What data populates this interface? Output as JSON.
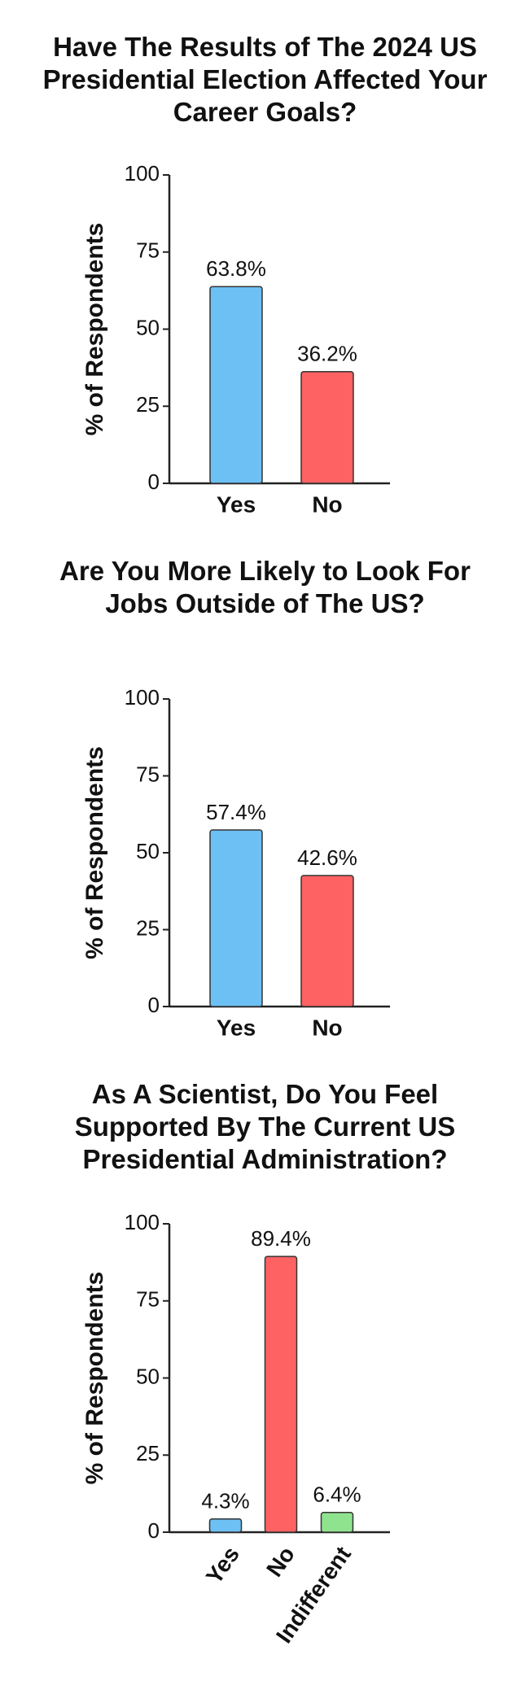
{
  "chart_data": [
    {
      "type": "bar",
      "title": "Have The Results of The 2024 US Presidential Election Affected Your Career Goals?",
      "y_label": "% of Respondents",
      "categories": [
        "Yes",
        "No"
      ],
      "values": [
        63.8,
        36.2
      ],
      "value_labels": [
        "63.8%",
        "36.2%"
      ],
      "colors": [
        "#6cc0f3",
        "#ff6262"
      ],
      "ylim": [
        0,
        100
      ],
      "yticks": [
        0,
        25,
        50,
        75,
        100
      ]
    },
    {
      "type": "bar",
      "title": "Are You More Likely to Look For Jobs Outside of The US?",
      "y_label": "% of Respondents",
      "categories": [
        "Yes",
        "No"
      ],
      "values": [
        57.4,
        42.6
      ],
      "value_labels": [
        "57.4%",
        "42.6%"
      ],
      "colors": [
        "#6cc0f3",
        "#ff6262"
      ],
      "ylim": [
        0,
        100
      ],
      "yticks": [
        0,
        25,
        50,
        75,
        100
      ]
    },
    {
      "type": "bar",
      "title": "As A Scientist, Do You Feel Supported By The Current US Presidential Administration?",
      "y_label": "% of Respondents",
      "categories": [
        "Yes",
        "No",
        "Indifferent"
      ],
      "values": [
        4.3,
        89.4,
        6.4
      ],
      "value_labels": [
        "4.3%",
        "89.4%",
        "6.4%"
      ],
      "colors": [
        "#6cc0f3",
        "#ff6262",
        "#90e38e"
      ],
      "ylim": [
        0,
        100
      ],
      "yticks": [
        0,
        25,
        50,
        75,
        100
      ]
    }
  ]
}
